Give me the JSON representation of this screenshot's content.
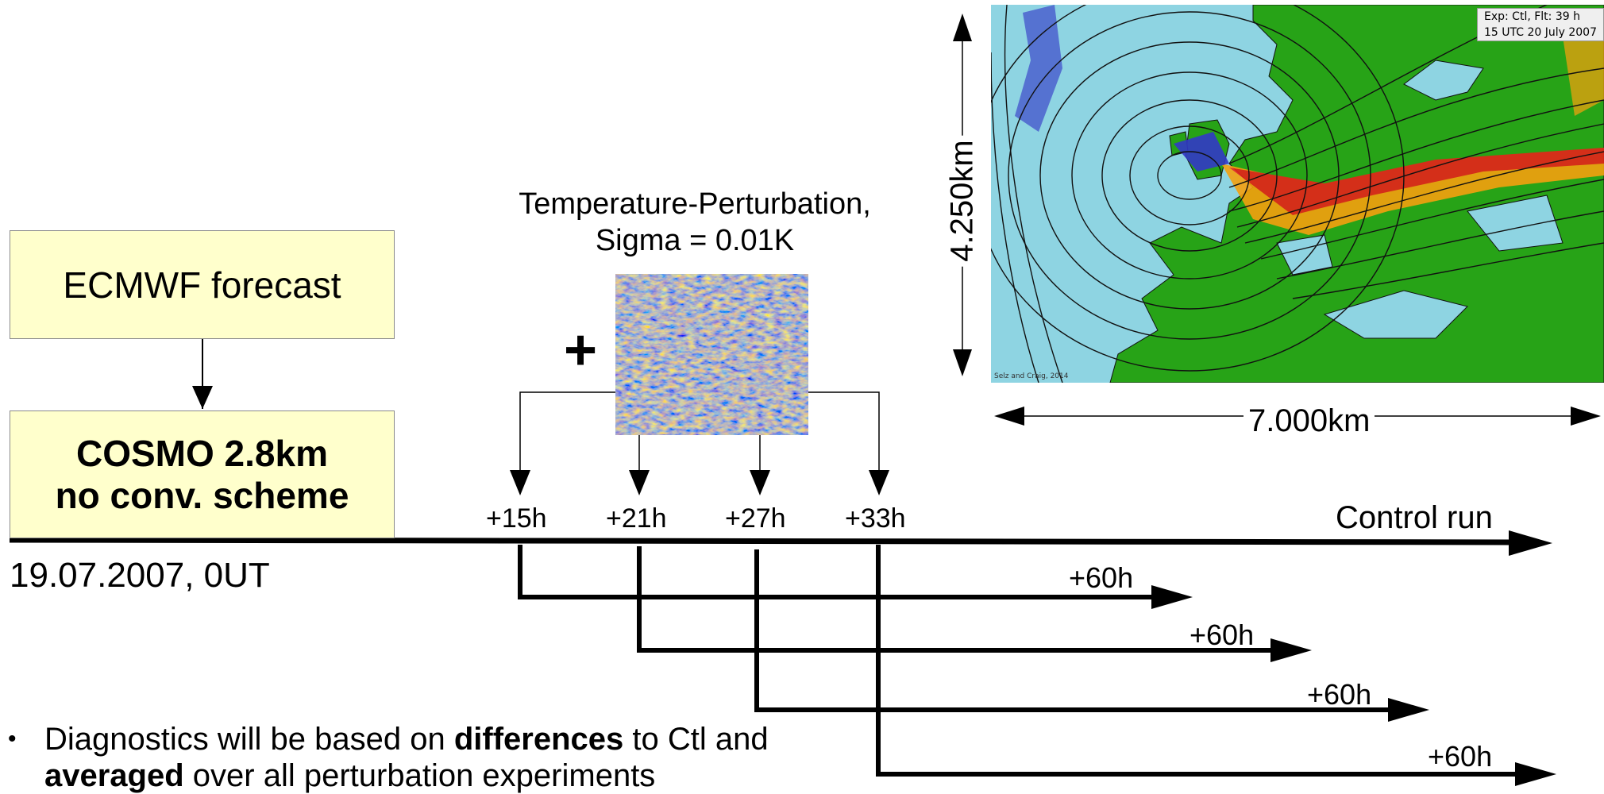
{
  "boxes": {
    "ecmwf": "ECMWF forecast",
    "cosmo_line1": "COSMO 2.8km",
    "cosmo_line2": "no conv. scheme"
  },
  "start_label": "19.07.2007, 0UT",
  "perturbation": {
    "title_line1": "Temperature-Perturbation,",
    "title_line2": "Sigma = 0.01K",
    "plus": "+"
  },
  "timeline": {
    "control_label": "Control run",
    "perturbation_times": [
      "+15h",
      "+21h",
      "+27h",
      "+33h"
    ],
    "run_length_label": "+60h"
  },
  "map": {
    "info_line1": "Exp: Ctl,     Flt: 39 h",
    "info_line2": "15 UTC 20 July 2007",
    "credit": "Selz and Craig, 2014",
    "width_label": "7.000km",
    "height_label": "4.250km"
  },
  "bullets": [
    {
      "parts": [
        {
          "text": "Diagnostics will be based on ",
          "bold": false
        },
        {
          "text": "differences",
          "bold": true
        },
        {
          "text": " to Ctl and ",
          "bold": false
        },
        {
          "text": "averaged",
          "bold": true
        },
        {
          "text": " over all perturbation experiments",
          "bold": false
        }
      ]
    }
  ],
  "colors": {
    "box_fill": "#ffffcc",
    "sea": "#8ed4e2",
    "land": "#27a317",
    "precip_red": "#e8221a",
    "precip_orange": "#f5a00f",
    "precip_blue": "#3338c8"
  }
}
